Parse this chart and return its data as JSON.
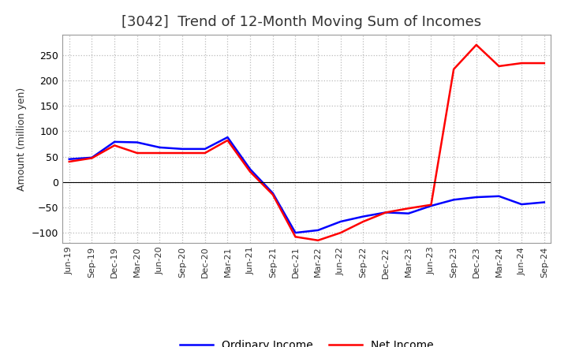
{
  "title": "[3042]  Trend of 12-Month Moving Sum of Incomes",
  "ylabel": "Amount (million yen)",
  "xlabels": [
    "Jun-19",
    "Sep-19",
    "Dec-19",
    "Mar-20",
    "Jun-20",
    "Sep-20",
    "Dec-20",
    "Mar-21",
    "Jun-21",
    "Sep-21",
    "Dec-21",
    "Mar-22",
    "Jun-22",
    "Sep-22",
    "Dec-22",
    "Mar-23",
    "Jun-23",
    "Sep-23",
    "Dec-23",
    "Mar-24",
    "Jun-24",
    "Sep-24"
  ],
  "ordinary_income": [
    45,
    48,
    79,
    78,
    68,
    65,
    65,
    88,
    25,
    -22,
    -100,
    -95,
    -78,
    -68,
    -60,
    -62,
    -47,
    -35,
    -30,
    -28,
    -44,
    -40
  ],
  "net_income": [
    40,
    47,
    72,
    57,
    57,
    57,
    57,
    82,
    20,
    -25,
    -108,
    -115,
    -100,
    -78,
    -60,
    -52,
    -45,
    222,
    270,
    228,
    234,
    234
  ],
  "ordinary_color": "#0000ff",
  "net_color": "#ff0000",
  "ylim": [
    -120,
    290
  ],
  "yticks": [
    -100,
    -50,
    0,
    50,
    100,
    150,
    200,
    250
  ],
  "grid_color": "#bbbbbb",
  "plot_bg_color": "#ffffff",
  "fig_bg_color": "#ffffff",
  "title_fontsize": 13,
  "title_color": "#333333",
  "tick_fontsize": 8,
  "ylabel_fontsize": 9,
  "legend_labels": [
    "Ordinary Income",
    "Net Income"
  ],
  "linewidth": 1.8
}
